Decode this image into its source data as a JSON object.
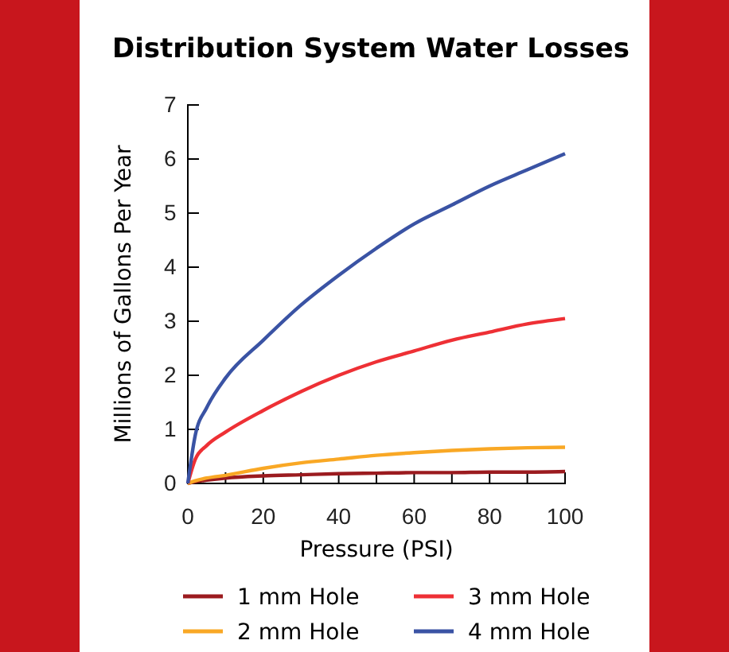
{
  "chart_data": {
    "type": "line",
    "title": "Distribution System Water Losses",
    "xlabel": "Pressure (PSI)",
    "ylabel": "Millions of Gallons Per Year",
    "x": [
      0,
      2,
      5,
      10,
      20,
      30,
      40,
      50,
      60,
      70,
      80,
      90,
      100
    ],
    "xlim": [
      0,
      100
    ],
    "xticks": [
      0,
      {
        "value": 10,
        "label": null
      },
      20,
      {
        "value": 30,
        "label": null
      },
      40,
      {
        "value": 50,
        "label": null
      },
      60,
      {
        "value": 70,
        "label": null
      },
      80,
      {
        "value": 90,
        "label": null
      },
      100
    ],
    "ylim": [
      0,
      7
    ],
    "yticks": [
      0,
      1,
      2,
      3,
      4,
      5,
      6,
      7
    ],
    "grid": false,
    "legend": "bottom",
    "marker": "none",
    "line_style": "solid",
    "series": [
      {
        "name": "1 mm Hole",
        "color": "#9b1b1f",
        "values": [
          0,
          0.03,
          0.06,
          0.1,
          0.14,
          0.16,
          0.18,
          0.19,
          0.2,
          0.2,
          0.21,
          0.21,
          0.22
        ]
      },
      {
        "name": "2 mm Hole",
        "color": "#f9a825",
        "values": [
          0,
          0.05,
          0.1,
          0.15,
          0.28,
          0.38,
          0.45,
          0.52,
          0.57,
          0.61,
          0.64,
          0.66,
          0.67
        ]
      },
      {
        "name": "3 mm Hole",
        "color": "#ee3035",
        "values": [
          0,
          0.45,
          0.7,
          0.95,
          1.35,
          1.7,
          2.0,
          2.25,
          2.45,
          2.65,
          2.8,
          2.95,
          3.05
        ]
      },
      {
        "name": "4 mm Hole",
        "color": "#3a53a4",
        "values": [
          0,
          0.9,
          1.4,
          1.95,
          2.65,
          3.3,
          3.85,
          4.35,
          4.8,
          5.15,
          5.5,
          5.8,
          6.1
        ]
      }
    ]
  }
}
